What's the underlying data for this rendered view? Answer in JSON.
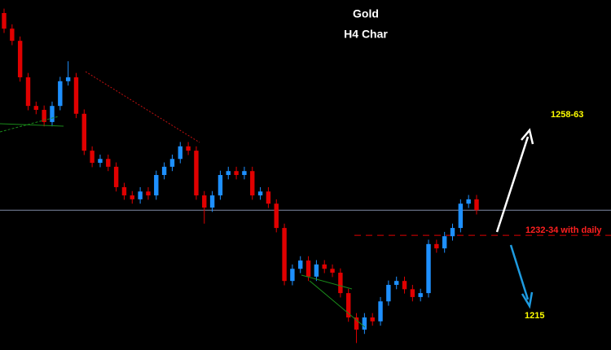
{
  "chart_data": {
    "type": "candlestick",
    "title": "Gold",
    "subtitle": "H4 Char",
    "annotations": [
      "1258-63",
      "1232-34 with daily",
      "1215"
    ],
    "up_color": "#1e90ff",
    "down_color": "#e00000",
    "ylim": [
      1206.4,
      1287
    ],
    "open": [
      1284,
      1280.4,
      1277.6,
      1269.2,
      1262.6,
      1261.7,
      1258.9,
      1262.6,
      1268.3,
      1269.2,
      1260.8,
      1252.3,
      1249.5,
      1250.4,
      1248.6,
      1243.9,
      1242,
      1241.1,
      1242.9,
      1242,
      1246.7,
      1248.6,
      1250.4,
      1253.3,
      1252.3,
      1242,
      1239.2,
      1242,
      1246.7,
      1247.6,
      1246.7,
      1247.6,
      1242,
      1242.9,
      1240.1,
      1234.5,
      1222.3,
      1225.1,
      1227,
      1223.3,
      1226.1,
      1225.1,
      1224.2,
      1219.5,
      1213.9,
      1211.1,
      1213.9,
      1213,
      1217.6,
      1221.4,
      1222.3,
      1220.4,
      1218.6,
      1219.5,
      1230.8,
      1229.8,
      1232.6,
      1234.5,
      1240.1,
      1241.1
    ],
    "high": [
      1285,
      1281.4,
      1278.6,
      1270.2,
      1263.6,
      1262.7,
      1263.6,
      1269.3,
      1272.9,
      1270.2,
      1261.8,
      1253.3,
      1251.4,
      1251.4,
      1249.6,
      1244.9,
      1243,
      1243.9,
      1243.9,
      1247.7,
      1249.6,
      1251.4,
      1254.3,
      1254.3,
      1253.3,
      1243,
      1243,
      1247.7,
      1248.6,
      1248.6,
      1248.6,
      1248.6,
      1243.9,
      1243.9,
      1241.1,
      1235.5,
      1226.1,
      1228,
      1228,
      1227.1,
      1227.1,
      1226.1,
      1225.2,
      1220.5,
      1214.9,
      1214.9,
      1214.9,
      1218.6,
      1222.4,
      1223.3,
      1223.3,
      1221.4,
      1220.5,
      1231.8,
      1231.8,
      1233.6,
      1235.5,
      1241.1,
      1242.1,
      1242.1
    ],
    "low": [
      1279.4,
      1276.6,
      1268.2,
      1261.6,
      1260.7,
      1257.9,
      1257.9,
      1261.6,
      1267.3,
      1259.8,
      1251.3,
      1248.5,
      1248.5,
      1247.6,
      1242.9,
      1241,
      1240.1,
      1240.1,
      1241,
      1241,
      1245.7,
      1247.6,
      1249.4,
      1251.3,
      1241,
      1235.5,
      1238.2,
      1241,
      1245.7,
      1245.7,
      1245.7,
      1241,
      1241,
      1239.1,
      1233.5,
      1221.3,
      1221.3,
      1224.1,
      1222.3,
      1222.3,
      1224.1,
      1223.2,
      1218.5,
      1212.9,
      1208,
      1210.1,
      1212,
      1212,
      1216.6,
      1220.4,
      1219.4,
      1217.6,
      1217.6,
      1218.5,
      1228.8,
      1228.8,
      1231.6,
      1233.5,
      1239.1,
      1237.6
    ],
    "close": [
      1280.4,
      1277.6,
      1269.2,
      1262.6,
      1261.7,
      1258.9,
      1262.6,
      1268.3,
      1269.2,
      1260.8,
      1252.3,
      1249.5,
      1250.4,
      1248.6,
      1243.9,
      1242,
      1241.1,
      1242.9,
      1242,
      1246.7,
      1248.6,
      1250.4,
      1253.3,
      1252.3,
      1242,
      1239.2,
      1242,
      1246.7,
      1247.6,
      1246.7,
      1247.6,
      1242,
      1242.9,
      1240.1,
      1234.5,
      1222.3,
      1225.1,
      1227,
      1223.3,
      1226.1,
      1225.1,
      1224.2,
      1219.5,
      1213.9,
      1211.1,
      1213.9,
      1213,
      1217.6,
      1221.4,
      1222.3,
      1220.4,
      1218.6,
      1219.5,
      1230.8,
      1229.8,
      1232.6,
      1234.5,
      1240.1,
      1241.1,
      1238.6
    ],
    "hlines": [
      {
        "value": 1238.6,
        "color": "#7f8aa6",
        "dashed": false
      },
      {
        "value": 1232.8,
        "color": "#e00000",
        "dashed": true
      }
    ]
  }
}
